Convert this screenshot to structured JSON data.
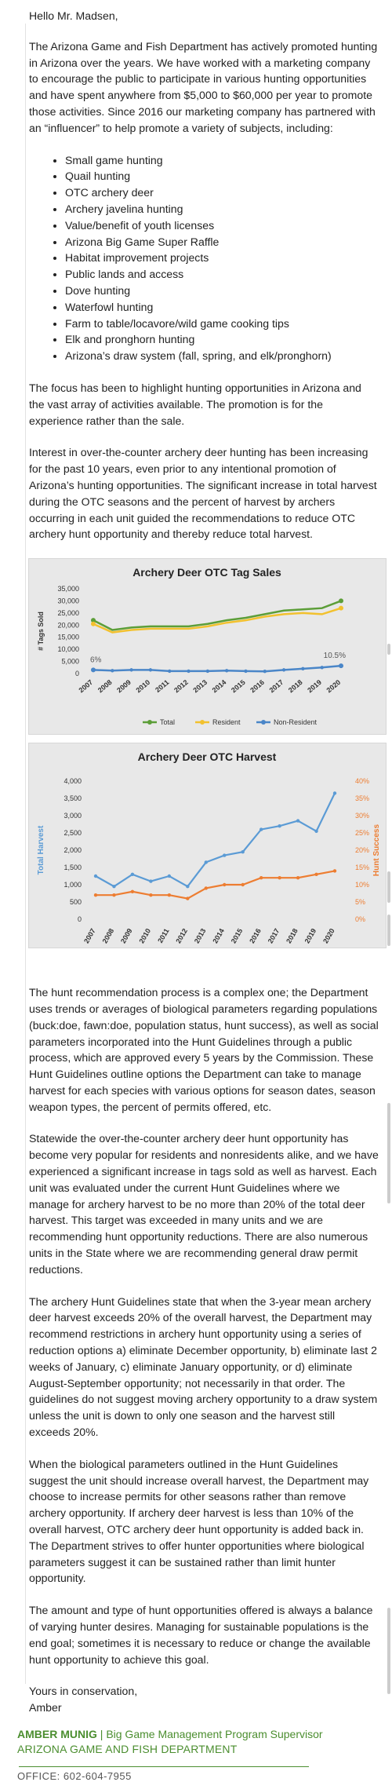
{
  "email": {
    "greeting": "Hello Mr. Madsen,",
    "para1": "The Arizona Game and Fish Department has actively promoted hunting in Arizona over the years.  We have worked with a marketing company to encourage the public to participate in various hunting opportunities and have spent anywhere from $5,000 to $60,000 per year to promote those activities. Since 2016 our marketing company has partnered with an “influencer” to help promote a variety of subjects, including:",
    "list": [
      "Small game hunting",
      "Quail hunting",
      "OTC archery deer",
      "Archery javelina hunting",
      "Value/benefit of youth licenses",
      "Arizona Big Game Super Raffle",
      "Habitat improvement projects",
      "Public lands and access",
      "Dove hunting",
      "Waterfowl hunting",
      "Farm to table/locavore/wild game cooking tips",
      "Elk and pronghorn hunting",
      "Arizona’s draw system (fall, spring, and elk/pronghorn)"
    ],
    "para2": "The focus has been to highlight hunting opportunities in Arizona and the vast array of activities available. The promotion is for the experience rather than the sale.",
    "para3": "Interest in over-the-counter archery deer hunting has been increasing for the past 10 years, even prior to any intentional promotion of Arizona’s hunting opportunities. The significant increase in total harvest during the OTC seasons and the percent of harvest by archers occurring in each unit guided the recommendations to reduce OTC archery hunt opportunity and thereby reduce total harvest.",
    "para4": "The hunt recommendation process is a complex one; the Department uses trends or averages of biological parameters regarding populations (buck:doe, fawn:doe, population status, hunt success), as well as social parameters incorporated into the Hunt Guidelines through a public process, which are approved every 5 years by the Commission. These Hunt Guidelines outline options the Department can take to manage harvest for each species with various options for season dates, season weapon types, the percent of permits offered, etc.",
    "para5": "Statewide the over-the-counter archery deer hunt opportunity has become very popular for residents and nonresidents alike, and we have experienced a significant increase in tags sold as well as harvest. Each unit was evaluated under the current Hunt Guidelines where we manage for archery harvest to be no more than 20% of the total deer harvest. This target was exceeded in many units and we are recommending hunt opportunity reductions. There are also numerous units in the State where we are recommending general draw permit reductions.",
    "para6": "The archery Hunt Guidelines state that when the 3-year mean archery deer harvest exceeds 20% of the overall harvest, the Department may recommend restrictions in archery hunt opportunity using a series of reduction options a) eliminate December opportunity, b) eliminate last 2 weeks of January, c) eliminate January opportunity, or d) eliminate August-September opportunity; not necessarily in that order. The guidelines do not suggest moving archery opportunity to a draw system unless the unit is down to only one season and the harvest still exceeds 20%.",
    "para7": "When the biological parameters outlined in the Hunt Guidelines suggest the unit should increase overall harvest, the Department may choose to increase permits for other seasons rather than remove archery opportunity. If archery deer harvest is less than 10% of the overall harvest, OTC archery deer hunt opportunity is added back in. The Department strives to offer hunter opportunities where biological parameters suggest it can be sustained rather than limit hunter opportunity.",
    "para8": "The amount and type of hunt opportunities offered is always a balance of varying hunter desires. Managing for sustainable populations is the end goal; sometimes it is necessary to reduce or change the available hunt opportunity to achieve this goal.",
    "closing": "Yours in conservation,",
    "closing_name": "Amber",
    "sig_name": "AMBER MUNIG",
    "sig_sep": " | ",
    "sig_title": "Big Game Management Program Supervisor",
    "sig_org": "ARIZONA GAME AND FISH DEPARTMENT",
    "office_line": "OFFICE: 602-604-7955"
  },
  "colors": {
    "total": "#5c9e38",
    "resident": "#f2c12e",
    "nonresident": "#4a86c8",
    "harvest": "#5b9bd5",
    "success": "#ed7d31",
    "panel": "#e8e8e8"
  },
  "chart_data": [
    {
      "type": "line",
      "title": "Archery Deer OTC Tag Sales",
      "ylabel": "# Tags Sold",
      "x": [
        "2007",
        "2008",
        "2009",
        "2010",
        "2011",
        "2012",
        "2013",
        "2014",
        "2015",
        "2016",
        "2017",
        "2018",
        "2019",
        "2020"
      ],
      "ylim": [
        0,
        35000
      ],
      "yticks": [
        "0",
        "5,000",
        "10,000",
        "15,000",
        "20,000",
        "25,000",
        "30,000",
        "35,000"
      ],
      "series": [
        {
          "name": "Total",
          "values": [
            22000,
            18000,
            19000,
            19500,
            19500,
            19500,
            20500,
            22000,
            23000,
            24500,
            26000,
            26500,
            27000,
            30000
          ]
        },
        {
          "name": "Resident",
          "values": [
            20500,
            17000,
            18000,
            18500,
            18500,
            18500,
            19500,
            21000,
            22000,
            23500,
            24500,
            25000,
            24500,
            27000
          ]
        },
        {
          "name": "Non-Resident",
          "values": [
            1500,
            1200,
            1500,
            1500,
            1000,
            1000,
            1000,
            1200,
            1000,
            900,
            1500,
            2000,
            2500,
            3200
          ]
        }
      ],
      "annotations": [
        "6%",
        "10.5%"
      ],
      "legend": "bottom"
    },
    {
      "type": "line",
      "title": "Archery Deer OTC Harvest",
      "ylabel": "Total Harvest",
      "y2label": "Hunt Success",
      "x": [
        "2007",
        "2008",
        "2009",
        "2010",
        "2011",
        "2012",
        "2013",
        "2014",
        "2015",
        "2016",
        "2017",
        "2018",
        "2019",
        "2020"
      ],
      "ylim": [
        0,
        4000
      ],
      "yticks": [
        "0",
        "500",
        "1,000",
        "1,500",
        "2,000",
        "2,500",
        "3,000",
        "3,500",
        "4,000"
      ],
      "y2lim": [
        0,
        40
      ],
      "y2ticks": [
        "0%",
        "5%",
        "10%",
        "15%",
        "20%",
        "25%",
        "30%",
        "35%",
        "40%"
      ],
      "series": [
        {
          "name": "Total Harvest",
          "axis": "left",
          "values": [
            1250,
            950,
            1300,
            1100,
            1250,
            950,
            1650,
            1850,
            1950,
            2600,
            2700,
            2850,
            2550,
            3650
          ]
        },
        {
          "name": "Hunt Success",
          "axis": "right",
          "values": [
            7,
            7,
            8,
            7,
            7,
            6,
            9,
            10,
            10,
            12,
            12,
            12,
            13,
            14
          ]
        }
      ]
    }
  ]
}
